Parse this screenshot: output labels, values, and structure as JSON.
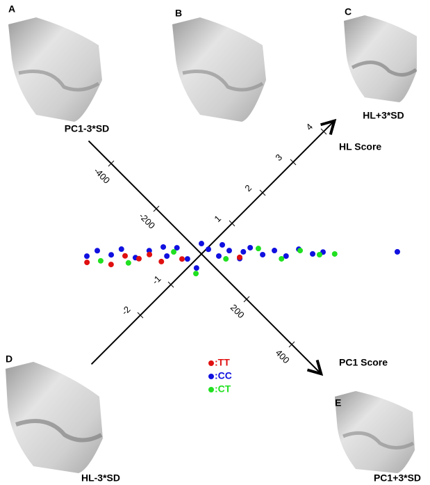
{
  "chart_data": {
    "type": "scatter",
    "x_label": "PC1 Score",
    "y_label": "HL Score",
    "xlim": [
      -500,
      530
    ],
    "ylim": [
      -3.6,
      4.35
    ],
    "xticks": [
      -400,
      -200,
      200,
      400
    ],
    "yticks": [
      -2,
      -1,
      1,
      2,
      3,
      4
    ],
    "series": [
      {
        "name": ":CC",
        "color": "#1010e0",
        "x": [
          -249,
          -238,
          -198,
          -188,
          -138,
          -123,
          -72,
          -68,
          -20,
          20,
          5,
          43,
          54,
          95,
          94,
          137,
          154,
          192,
          205,
          246,
          265,
          429,
          -100,
          -23,
          26,
          88
        ],
        "values": [
          -1.91,
          -1.65,
          -1.49,
          -1.23,
          -1.14,
          -0.8,
          -0.6,
          -0.3,
          -0.31,
          -0.31,
          0.19,
          0.25,
          0.51,
          0.55,
          0.9,
          0.99,
          1.25,
          1.35,
          1.67,
          1.82,
          2.02,
          3.24,
          -0.51,
          0.17,
          0.49,
          0.72
        ]
      },
      {
        "name": ":TT",
        "color": "#e01010",
        "x": [
          -235,
          -177,
          -165,
          -128,
          -114,
          -72,
          -32,
          92
        ],
        "values": [
          -2.01,
          -1.65,
          -1.28,
          -1.1,
          -0.86,
          -0.78,
          -0.4,
          0.57
        ]
      },
      {
        "name": ":CT",
        "color": "#20e020",
        "x": [
          -208,
          -142,
          -66,
          31,
          65,
          114,
          188,
          211,
          263,
          295
        ],
        "values": [
          -1.76,
          -1.34,
          -0.42,
          -0.41,
          0.32,
          1.02,
          1.23,
          1.67,
          1.92,
          2.18
        ]
      }
    ]
  },
  "panels": [
    {
      "letter": "A",
      "caption": "PC1-3*SD"
    },
    {
      "letter": "B"
    },
    {
      "letter": "C",
      "caption": "HL+3*SD"
    },
    {
      "letter": "D",
      "caption": "HL-3*SD"
    },
    {
      "letter": "E",
      "caption": "PC1+3*SD"
    }
  ]
}
